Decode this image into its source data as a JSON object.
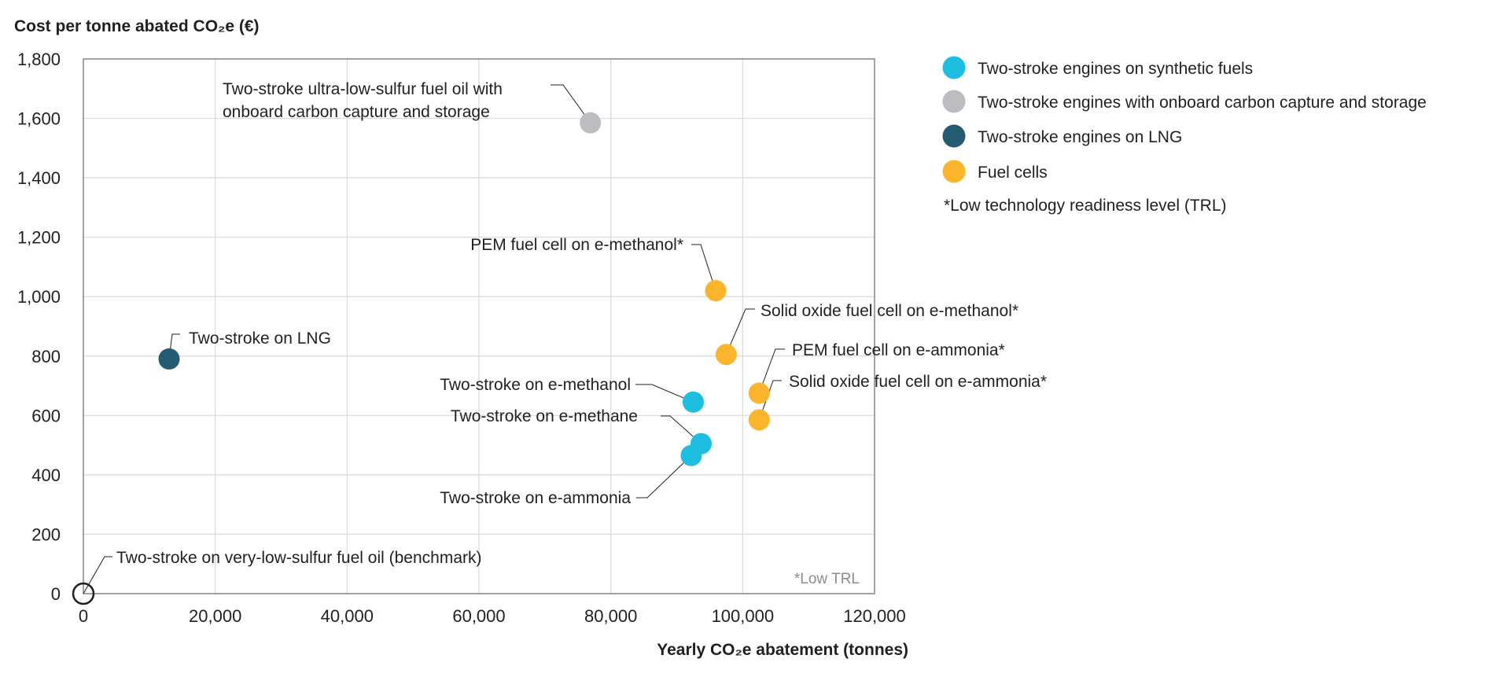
{
  "chart_data": {
    "type": "scatter",
    "title": "",
    "ylabel": "Cost per tonne abated CO₂e (€)",
    "xlabel": "Yearly CO₂e abatement (tonnes)",
    "xlim": [
      0,
      120000
    ],
    "ylim": [
      0,
      1800
    ],
    "x_ticks": [
      "0",
      "20,000",
      "40,000",
      "60,000",
      "80,000",
      "100,000",
      "120,000"
    ],
    "y_ticks": [
      "0",
      "200",
      "400",
      "600",
      "800",
      "1,000",
      "1,200",
      "1,400",
      "1,600",
      "1,800"
    ],
    "grid": true,
    "legend_position": "right",
    "categories": [
      {
        "key": "synthetic",
        "name": "Two-stroke engines on synthetic fuels",
        "color": "#1ebee0"
      },
      {
        "key": "ccs",
        "name": "Two-stroke engines with onboard carbon capture and storage",
        "color": "#bcbdc0"
      },
      {
        "key": "lng",
        "name": "Two-stroke engines on LNG",
        "color": "#245a72"
      },
      {
        "key": "fuelcell",
        "name": "Fuel cells",
        "color": "#fbb52c"
      }
    ],
    "legend_note": "*Low technology readiness level (TRL)",
    "plot_note": "*Low TRL",
    "points": [
      {
        "label": "Two-stroke on very-low-sulfur fuel oil (benchmark)",
        "category": "benchmark",
        "x": 0,
        "y": 0
      },
      {
        "label": "Two-stroke on LNG",
        "category": "lng",
        "x": 13000,
        "y": 790
      },
      {
        "label": "Two-stroke ultra-low-sulfur fuel oil with|onboard carbon capture and storage",
        "category": "ccs",
        "x": 76900,
        "y": 1585
      },
      {
        "label": "PEM fuel cell on e-methanol*",
        "category": "fuelcell",
        "x": 95900,
        "y": 1020
      },
      {
        "label": "Solid oxide fuel cell on e-methanol*",
        "category": "fuelcell",
        "x": 97500,
        "y": 805
      },
      {
        "label": "PEM fuel cell on e-ammonia*",
        "category": "fuelcell",
        "x": 102500,
        "y": 675
      },
      {
        "label": "Solid oxide fuel cell on e-ammonia*",
        "category": "fuelcell",
        "x": 102500,
        "y": 585
      },
      {
        "label": "Two-stroke on e-methanol",
        "category": "synthetic",
        "x": 92500,
        "y": 645
      },
      {
        "label": "Two-stroke on e-methane",
        "category": "synthetic",
        "x": 93700,
        "y": 505
      },
      {
        "label": "Two-stroke on e-ammonia",
        "category": "synthetic",
        "x": 92200,
        "y": 465
      }
    ]
  }
}
